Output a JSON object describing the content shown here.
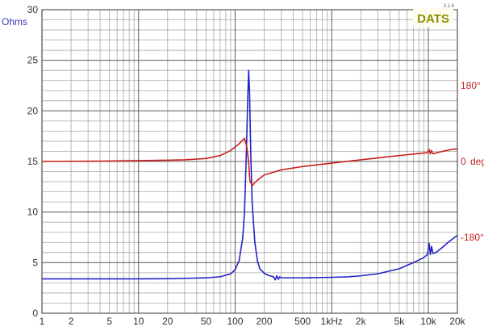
{
  "chart_data": {
    "type": "line",
    "x_scale": "log",
    "xlim": [
      1,
      20000
    ],
    "ylim": [
      0,
      30
    ],
    "y2lim": [
      -360,
      360
    ],
    "grid": true,
    "y_label": "Ohms",
    "y2_label": "deg",
    "x_ticks": [
      {
        "v": 1,
        "label": "1"
      },
      {
        "v": 2,
        "label": "2"
      },
      {
        "v": 5,
        "label": "5"
      },
      {
        "v": 10,
        "label": "10"
      },
      {
        "v": 20,
        "label": "20"
      },
      {
        "v": 50,
        "label": "50"
      },
      {
        "v": 100,
        "label": "100"
      },
      {
        "v": 200,
        "label": "200"
      },
      {
        "v": 500,
        "label": "500"
      },
      {
        "v": 1000,
        "label": "1kHz"
      },
      {
        "v": 2000,
        "label": "2k"
      },
      {
        "v": 5000,
        "label": "5k"
      },
      {
        "v": 10000,
        "label": "10k"
      },
      {
        "v": 20000,
        "label": "20k"
      }
    ],
    "y_ticks": [
      {
        "v": 0,
        "label": "0"
      },
      {
        "v": 5,
        "label": "5"
      },
      {
        "v": 10,
        "label": "10"
      },
      {
        "v": 15,
        "label": "15"
      },
      {
        "v": 20,
        "label": "20"
      },
      {
        "v": 25,
        "label": "25"
      },
      {
        "v": 30,
        "label": "30"
      }
    ],
    "y2_ticks": [
      {
        "v": 180,
        "label": "180°"
      },
      {
        "v": 0,
        "label": "0"
      },
      {
        "v": -180,
        "label": "-180°"
      }
    ],
    "series": [
      {
        "color": "#2323c8",
        "axis": "left",
        "points": [
          [
            1,
            3.4
          ],
          [
            2,
            3.4
          ],
          [
            5,
            3.4
          ],
          [
            10,
            3.4
          ],
          [
            20,
            3.42
          ],
          [
            30,
            3.45
          ],
          [
            50,
            3.5
          ],
          [
            70,
            3.6
          ],
          [
            90,
            3.9
          ],
          [
            100,
            4.3
          ],
          [
            110,
            5.2
          ],
          [
            120,
            7.5
          ],
          [
            125,
            10.0
          ],
          [
            130,
            15.0
          ],
          [
            135,
            21.0
          ],
          [
            138,
            24.0
          ],
          [
            141,
            22.0
          ],
          [
            145,
            16.0
          ],
          [
            150,
            11.0
          ],
          [
            160,
            7.0
          ],
          [
            170,
            5.2
          ],
          [
            180,
            4.4
          ],
          [
            200,
            3.95
          ],
          [
            220,
            3.75
          ],
          [
            250,
            3.6
          ],
          [
            260,
            3.3
          ],
          [
            270,
            3.7
          ],
          [
            280,
            3.35
          ],
          [
            290,
            3.6
          ],
          [
            300,
            3.5
          ],
          [
            400,
            3.5
          ],
          [
            500,
            3.5
          ],
          [
            700,
            3.52
          ],
          [
            1000,
            3.55
          ],
          [
            1500,
            3.6
          ],
          [
            2000,
            3.7
          ],
          [
            3000,
            3.9
          ],
          [
            5000,
            4.4
          ],
          [
            7000,
            5.0
          ],
          [
            9000,
            5.5
          ],
          [
            9800,
            5.8
          ],
          [
            10200,
            6.9
          ],
          [
            10500,
            5.8
          ],
          [
            10800,
            6.6
          ],
          [
            11200,
            5.9
          ],
          [
            12000,
            6.0
          ],
          [
            14000,
            6.5
          ],
          [
            16000,
            7.0
          ],
          [
            20000,
            7.7
          ]
        ]
      },
      {
        "color": "#c81e1e",
        "axis": "right",
        "points": [
          [
            1,
            0
          ],
          [
            5,
            1
          ],
          [
            10,
            2
          ],
          [
            20,
            3
          ],
          [
            30,
            4
          ],
          [
            50,
            7
          ],
          [
            70,
            14
          ],
          [
            90,
            26
          ],
          [
            110,
            42
          ],
          [
            125,
            55
          ],
          [
            132,
            35
          ],
          [
            138,
            0
          ],
          [
            142,
            -45
          ],
          [
            150,
            -58
          ],
          [
            160,
            -50
          ],
          [
            180,
            -40
          ],
          [
            200,
            -32
          ],
          [
            300,
            -20
          ],
          [
            500,
            -12
          ],
          [
            1000,
            -4
          ],
          [
            2000,
            4
          ],
          [
            5000,
            14
          ],
          [
            9000,
            20
          ],
          [
            9800,
            21
          ],
          [
            10200,
            28
          ],
          [
            10500,
            18
          ],
          [
            10800,
            26
          ],
          [
            11200,
            18
          ],
          [
            12000,
            20
          ],
          [
            14000,
            24
          ],
          [
            17000,
            28
          ],
          [
            20000,
            30
          ]
        ]
      }
    ]
  },
  "watermark": {
    "text": "DATS",
    "version": "3.1.6"
  }
}
